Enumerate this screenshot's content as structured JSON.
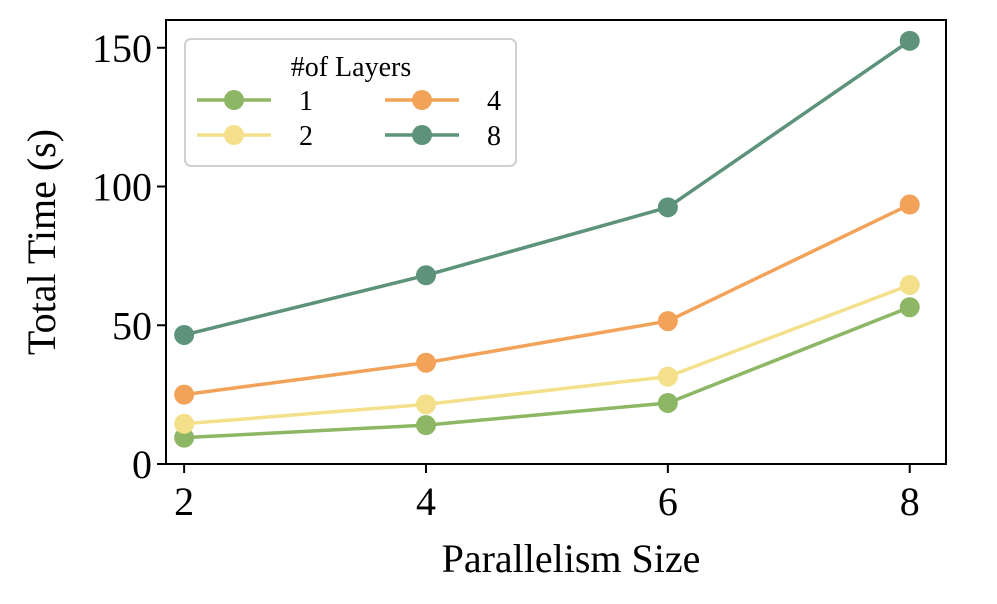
{
  "chart_data": {
    "type": "line",
    "xlabel": "Parallelism Size",
    "ylabel": "Total Time (s)",
    "x": [
      2,
      4,
      6,
      8
    ],
    "xticks": [
      "2",
      "4",
      "6",
      "8"
    ],
    "yticks": [
      "0",
      "50",
      "100",
      "150"
    ],
    "ytick_values": [
      0,
      50,
      100,
      150
    ],
    "xlim": [
      1.85,
      8.3
    ],
    "ylim": [
      0,
      160
    ],
    "legend": {
      "title": "#of Layers",
      "placement": "top-left"
    },
    "series": [
      {
        "name": "1",
        "color": "#8db764",
        "values": [
          9.5,
          14,
          22,
          56.5
        ]
      },
      {
        "name": "2",
        "color": "#f4e08a",
        "values": [
          14.5,
          21.5,
          31.5,
          64.5
        ]
      },
      {
        "name": "4",
        "color": "#f2a359",
        "values": [
          25,
          36.5,
          51.5,
          93.5
        ]
      },
      {
        "name": "8",
        "color": "#5d927b",
        "values": [
          46.5,
          68,
          92.5,
          152.5
        ]
      }
    ]
  }
}
